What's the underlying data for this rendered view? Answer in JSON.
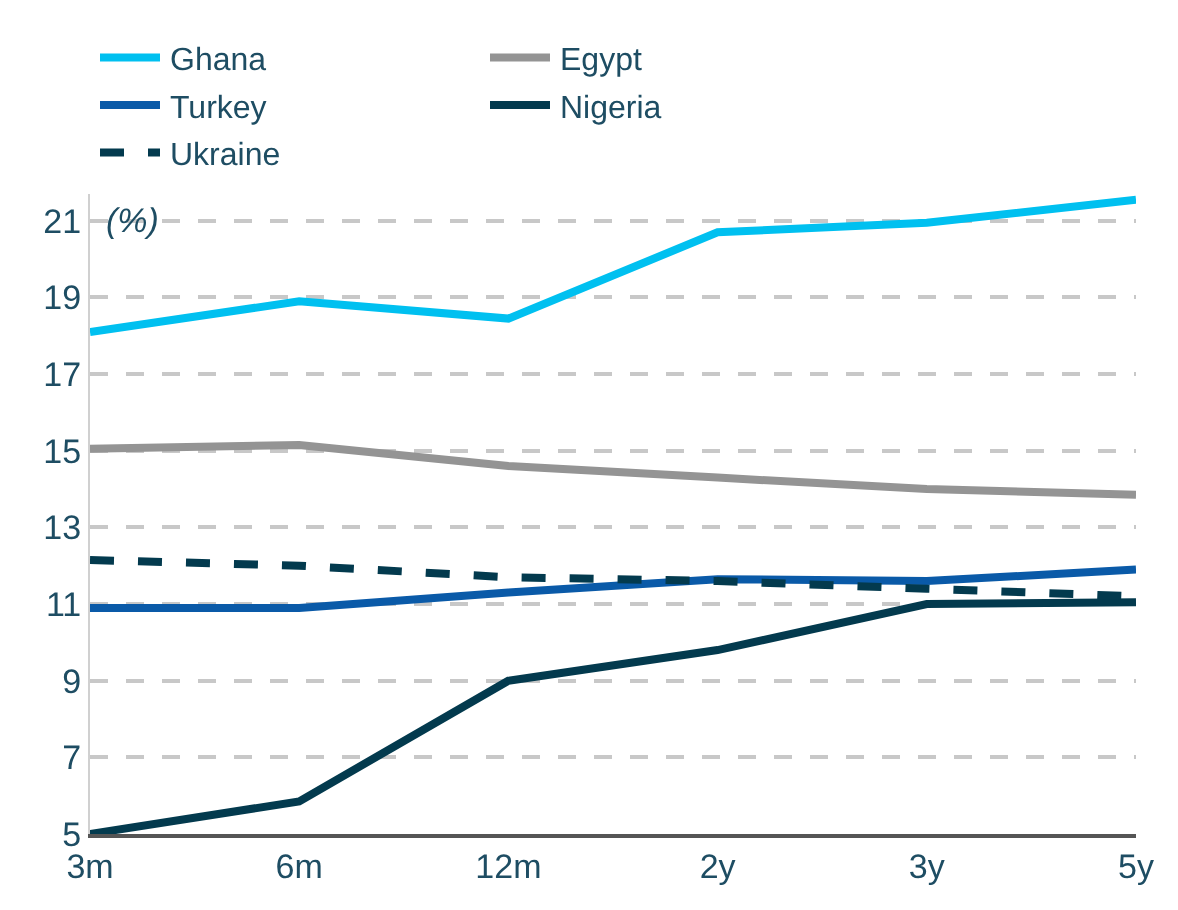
{
  "chart_data": {
    "type": "line",
    "categories": [
      "3m",
      "6m",
      "12m",
      "2y",
      "3y",
      "5y"
    ],
    "series": [
      {
        "name": "Ghana",
        "color": "#00c0f0",
        "values": [
          18.1,
          18.9,
          18.45,
          20.7,
          20.95,
          21.55
        ]
      },
      {
        "name": "Egypt",
        "color": "#949494",
        "values": [
          15.05,
          15.15,
          14.6,
          14.3,
          14.0,
          13.85
        ]
      },
      {
        "name": "Turkey",
        "color": "#0a5aa8",
        "values": [
          10.9,
          10.9,
          11.3,
          11.65,
          11.6,
          11.9
        ]
      },
      {
        "name": "Nigeria",
        "color": "#033a4e",
        "values": [
          5.0,
          5.85,
          9.0,
          9.8,
          11.0,
          11.05
        ]
      },
      {
        "name": "Ukraine",
        "color": "#033a4e",
        "values": [
          12.15,
          12.0,
          11.7,
          11.6,
          11.4,
          11.2
        ],
        "line_style": "dashed"
      }
    ],
    "ylim": [
      5,
      21.7
    ],
    "yticks": [
      5,
      7,
      9,
      11,
      13,
      15,
      17,
      19,
      21
    ],
    "grid": "y",
    "legend": "top",
    "marker": "none",
    "annotations": [
      "(%)"
    ]
  }
}
